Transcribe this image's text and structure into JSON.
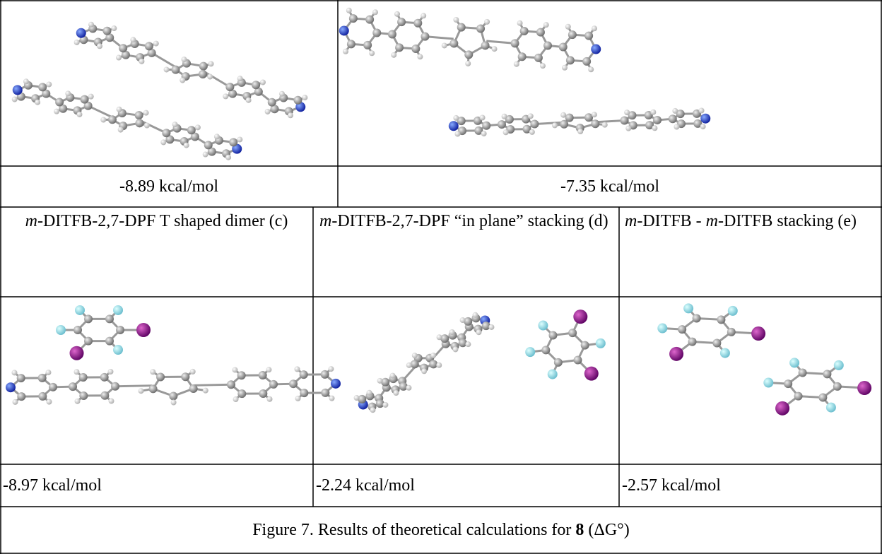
{
  "top_energies": [
    "-8.89 kcal/mol",
    "-7.35 kcal/mol"
  ],
  "labels": [
    [
      "m",
      "-DITFB-2,7-DPF T shaped dimer (c)"
    ],
    [
      "m",
      "-DITFB-2,7-DPF “in plane” stacking (d)"
    ],
    [
      "m",
      "-DITFB - ",
      "m",
      "-DITFB stacking (e)"
    ]
  ],
  "bottom_energies": [
    "-8.97 kcal/mol",
    "-2.24 kcal/mol",
    "-2.57 kcal/mol"
  ],
  "caption": [
    "Figure 7. Results of theoretical calculations for ",
    "8",
    " (ΔG°)"
  ]
}
